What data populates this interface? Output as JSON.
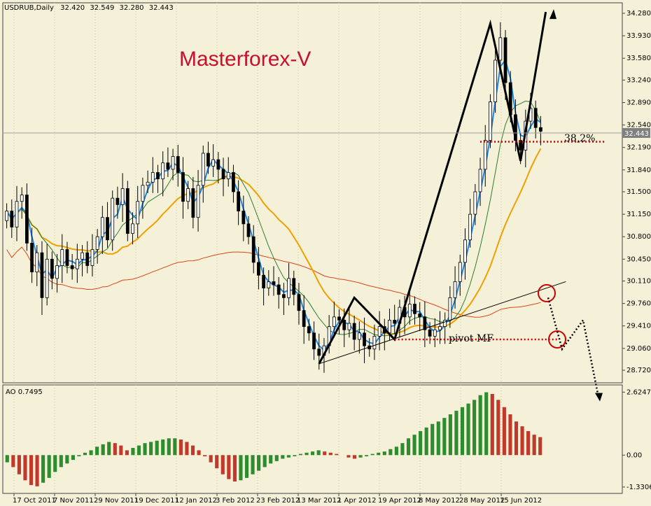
{
  "chart_data": {
    "type": "candlestick",
    "header": {
      "symbol": "USDRUB,Daily",
      "open": "32.420",
      "high": "32.549",
      "low": "32.280",
      "close": "32.443"
    },
    "brand": "Masterforex-V",
    "current_price_label": "32.443",
    "y_axis_main": {
      "ticks": [
        "34.280",
        "33.930",
        "33.580",
        "33.240",
        "32.890",
        "32.540",
        "32.190",
        "31.840",
        "31.500",
        "31.150",
        "30.800",
        "30.450",
        "30.110",
        "29.760",
        "29.410",
        "29.060",
        "28.720"
      ],
      "range": [
        28.6,
        34.4
      ]
    },
    "x_axis": {
      "ticks": [
        "17 Oct 2011",
        "7 Nov 2011",
        "29 Nov 2011",
        "19 Dec 2011",
        "12 Jan 2012",
        "3 Feb 2012",
        "23 Feb 2012",
        "13 Mar 2012",
        "1 Apr 2012",
        "19 Apr 2012",
        "8 May 2012",
        "28 May 2012",
        "15 Jun 2012"
      ]
    },
    "series": [
      {
        "name": "close",
        "color": "#000000",
        "values": [
          31.2,
          30.95,
          31.35,
          31.45,
          30.7,
          30.25,
          30.55,
          29.85,
          30.45,
          30.15,
          30.35,
          30.6,
          30.35,
          30.3,
          30.45,
          30.55,
          30.35,
          30.6,
          30.8,
          31.1,
          30.75,
          31.4,
          31.3,
          31.55,
          30.85,
          31.0,
          31.35,
          31.6,
          31.65,
          31.8,
          31.7,
          31.95,
          31.85,
          32.05,
          31.8,
          31.35,
          31.55,
          31.1,
          31.6,
          32.1,
          31.9,
          32.0,
          31.85,
          31.7,
          31.8,
          31.5,
          31.2,
          31.0,
          30.8,
          30.4,
          30.2,
          30.0,
          30.1,
          30.05,
          29.9,
          29.85,
          30.15,
          29.9,
          29.65,
          29.4,
          29.3,
          29.05,
          28.95,
          29.1,
          29.4,
          29.55,
          29.5,
          29.35,
          29.45,
          29.2,
          29.3,
          29.1,
          29.05,
          29.25,
          29.4,
          29.3,
          29.5,
          29.45,
          29.7,
          29.55,
          29.75,
          29.6,
          29.55,
          29.35,
          29.25,
          29.35,
          29.4,
          29.5,
          29.85,
          30.1,
          30.4,
          30.75,
          31.15,
          31.5,
          31.85,
          32.3,
          32.9,
          33.55,
          33.9,
          33.2,
          32.7,
          32.3,
          32.15,
          32.6,
          32.8,
          32.5,
          32.443
        ]
      },
      {
        "name": "short_ma",
        "color": "#1e88e5"
      },
      {
        "name": "mid_ma",
        "color": "#2e7d32"
      },
      {
        "name": "long_ma",
        "color": "#f0a000"
      },
      {
        "name": "trend_ma",
        "color": "#d8461a"
      }
    ],
    "levels": [
      {
        "label": "38,2%",
        "value": 32.28
      },
      {
        "label": "pivot MF",
        "value": 29.2
      }
    ],
    "oscillator": {
      "label": "AO 0.7495",
      "ticks": [
        "2.6247",
        "0.00",
        "-1.3306"
      ],
      "range": [
        -1.45,
        2.75
      ],
      "values": [
        -0.3,
        -0.5,
        -0.8,
        -1.05,
        -1.25,
        -1.3,
        -1.15,
        -0.95,
        -0.7,
        -0.5,
        -0.35,
        -0.2,
        -0.05,
        0.1,
        0.2,
        0.35,
        0.45,
        0.55,
        0.5,
        0.4,
        0.2,
        0.3,
        0.4,
        0.5,
        0.55,
        0.6,
        0.65,
        0.7,
        0.7,
        0.65,
        0.55,
        0.4,
        0.2,
        -0.05,
        -0.3,
        -0.55,
        -0.8,
        -1.0,
        -1.1,
        -1.05,
        -0.95,
        -0.8,
        -0.65,
        -0.5,
        -0.35,
        -0.25,
        -0.15,
        -0.1,
        -0.05,
        0.05,
        0.1,
        0.15,
        0.2,
        0.15,
        0.1,
        0.05,
        0.0,
        -0.1,
        -0.15,
        -0.1,
        -0.05,
        0.05,
        0.1,
        0.15,
        0.25,
        0.35,
        0.5,
        0.7,
        0.85,
        1.0,
        1.15,
        1.3,
        1.4,
        1.55,
        1.7,
        1.85,
        2.0,
        2.15,
        2.3,
        2.5,
        2.62,
        2.55,
        2.3,
        2.0,
        1.7,
        1.4,
        1.2,
        1.0,
        0.85,
        0.75
      ]
    }
  }
}
